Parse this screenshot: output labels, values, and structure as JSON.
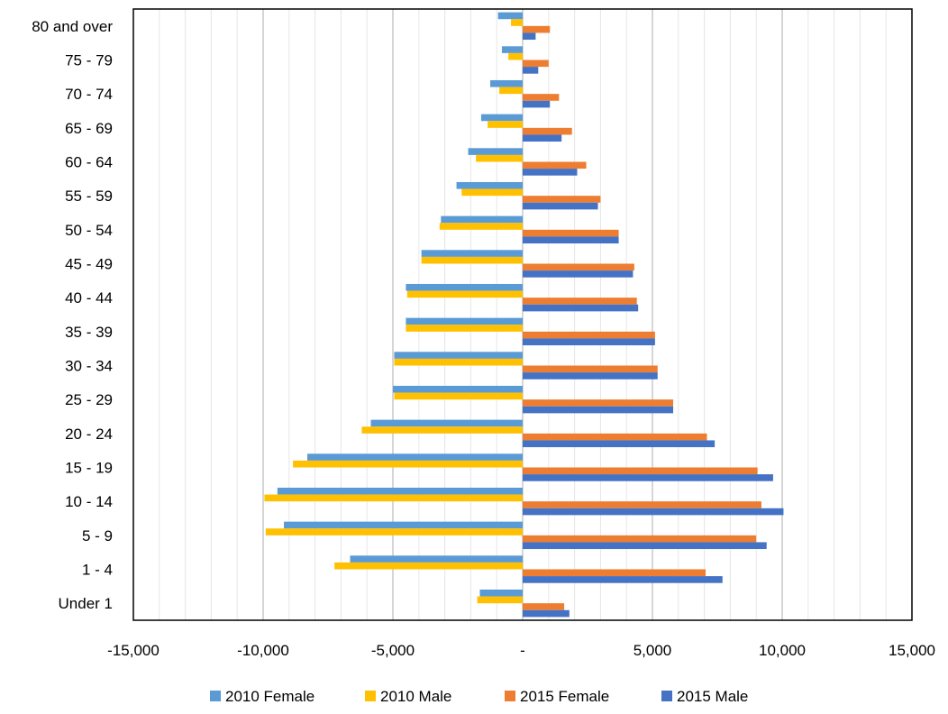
{
  "chart_data": {
    "type": "bar",
    "orientation": "horizontal",
    "categories": [
      "80 and over",
      "75 - 79",
      "70 - 74",
      "65 - 69",
      "60 - 64",
      "55 - 59",
      "50 - 54",
      "45 - 49",
      "40 - 44",
      "35 - 39",
      "30 - 34",
      "25 - 29",
      "20 - 24",
      "15 - 19",
      "10 - 14",
      "5 - 9",
      "1 - 4",
      "Under 1"
    ],
    "series": [
      {
        "name": "2010 Female",
        "color": "#5B9BD5",
        "values": [
          -950,
          -800,
          -1250,
          -1600,
          -2100,
          -2550,
          -3150,
          -3900,
          -4500,
          -4500,
          -4950,
          -5000,
          -5850,
          -8300,
          -9450,
          -9200,
          -6650,
          -1650
        ]
      },
      {
        "name": "2010 Male",
        "color": "#FFC000",
        "values": [
          -450,
          -550,
          -900,
          -1350,
          -1800,
          -2350,
          -3200,
          -3900,
          -4450,
          -4500,
          -4950,
          -4950,
          -6200,
          -8850,
          -9950,
          -9900,
          -7250,
          -1750
        ]
      },
      {
        "name": "2015 Female",
        "color": "#ED7D31",
        "values": [
          1050,
          1000,
          1400,
          1900,
          2450,
          3000,
          3700,
          4300,
          4400,
          5100,
          5200,
          5800,
          7100,
          9050,
          9200,
          9000,
          7050,
          1600
        ]
      },
      {
        "name": "2015 Male",
        "color": "#4472C4",
        "values": [
          500,
          600,
          1050,
          1500,
          2100,
          2900,
          3700,
          4250,
          4450,
          5100,
          5200,
          5800,
          7400,
          9650,
          10050,
          9400,
          7700,
          1800
        ]
      }
    ],
    "xlim": [
      -15000,
      15000
    ],
    "xticks": [
      "-15,000",
      "-10,000",
      "-5,000",
      "-",
      "5,000",
      "10,000",
      "15,000"
    ],
    "grid": true,
    "legend_position": "bottom",
    "title": "",
    "xlabel": "",
    "ylabel": ""
  }
}
